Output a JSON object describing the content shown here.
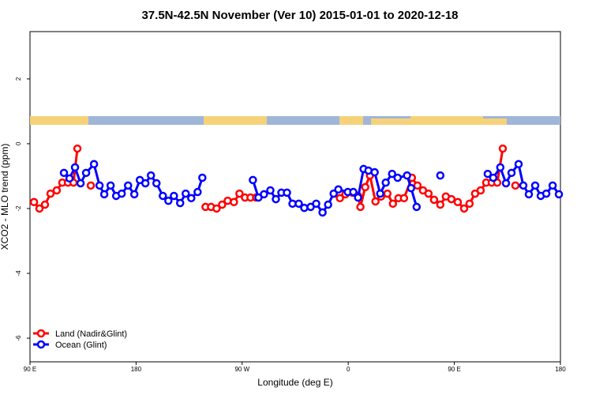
{
  "chart_data": {
    "type": "line",
    "title": "37.5N-42.5N November (Ver 10)   2015-01-01 to 2020-12-18",
    "x_label": "Longitude (deg E)",
    "y_label": "XCO2 - MLO trend (ppm)",
    "xlim": [
      90,
      540
    ],
    "xticks": [
      {
        "value": 90,
        "label": "90 E"
      },
      180,
      {
        "value": 270,
        "label": "90 W"
      },
      {
        "value": 360,
        "label": "0"
      },
      {
        "value": 450,
        "label": "90 E"
      },
      {
        "value": 540,
        "label": "180"
      }
    ],
    "ylim": [
      -6.73,
      3.46
    ],
    "yticks": [
      -6,
      -4,
      -2,
      0,
      2
    ],
    "legend": "bottom-left",
    "series": [
      {
        "name": "Land (Nadir&Glint)",
        "color": "#ff0000",
        "x": [
          93.4,
          98.0,
          102.7,
          107.4,
          112.7,
          117.4,
          122.2,
          126.9,
          130.2,
          null,
          141.6,
          null,
          238.9,
          243.6,
          248.3,
          253.0,
          257.7,
          263.0,
          267.7,
          272.4,
          277.1,
          281.8,
          null,
          352.9,
          357.6,
          363.6,
          368.3,
          370.3,
          374.4,
          378.4,
          383.1,
          387.8,
          393.2,
          397.9,
          402.6,
          407.3,
          414.0,
          418.7,
          423.4,
          428.1,
          432.8,
          438.1,
          442.8,
          447.5,
          452.9,
          458.3,
          462.9,
          467.6,
          472.3,
          477.0,
          481.7,
          486.4,
          491.1,
          null,
          501.8
        ],
        "values": [
          -1.8,
          -2.0,
          -1.88,
          -1.54,
          -1.44,
          -1.2,
          -1.2,
          -1.2,
          -0.15,
          null,
          -1.29,
          null,
          -1.95,
          -1.95,
          -2.0,
          -1.88,
          -1.76,
          -1.8,
          -1.54,
          -1.66,
          -1.66,
          -1.66,
          null,
          -1.68,
          -1.56,
          -1.51,
          -1.61,
          -1.95,
          -1.34,
          -0.98,
          -1.78,
          -1.63,
          -1.54,
          -1.85,
          -1.68,
          -1.68,
          -1.05,
          -1.29,
          -1.44,
          -1.54,
          -1.73,
          -1.88,
          -1.63,
          -1.71,
          -1.8,
          -2.0,
          -1.85,
          -1.54,
          -1.44,
          -1.2,
          -1.2,
          -1.2,
          -0.15,
          null,
          -1.29
        ]
      },
      {
        "name": "Ocean (Glint)",
        "color": "#0000ff",
        "x": [
          118.8,
          123.5,
          128.2,
          132.9,
          137.6,
          144.3,
          149.0,
          153.0,
          158.4,
          163.1,
          167.8,
          173.2,
          178.5,
          183.2,
          187.9,
          192.6,
          197.3,
          202.7,
          207.4,
          212.1,
          217.4,
          222.1,
          226.8,
          232.2,
          236.2,
          null,
          279.1,
          283.8,
          288.5,
          293.9,
          298.6,
          303.3,
          308.0,
          312.7,
          318.0,
          322.7,
          328.1,
          332.8,
          338.2,
          342.9,
          347.6,
          351.6,
          359.6,
          364.3,
          368.3,
          373.0,
          377.1,
          382.4,
          387.1,
          391.8,
          397.2,
          401.9,
          409.9,
          413.3,
          418.0,
          null,
          438.1,
          null,
          478.3,
          483.0,
          489.0,
          493.8,
          498.5,
          504.5,
          508.5,
          513.2,
          518.6,
          523.3,
          528.0,
          533.4,
          538.7
        ],
        "values": [
          -0.9,
          -1.07,
          -0.73,
          -1.22,
          -0.9,
          -0.63,
          -1.29,
          -1.56,
          -1.29,
          -1.61,
          -1.54,
          -1.29,
          -1.56,
          -1.12,
          -1.22,
          -0.98,
          -1.22,
          -1.61,
          -1.76,
          -1.61,
          -1.83,
          -1.54,
          -1.68,
          -1.49,
          -1.05,
          null,
          -1.12,
          -1.66,
          -1.56,
          -1.44,
          -1.71,
          -1.51,
          -1.51,
          -1.85,
          -1.85,
          -1.98,
          -1.95,
          -1.85,
          -2.12,
          -1.88,
          -1.54,
          -1.41,
          -1.49,
          -1.49,
          -1.66,
          -0.78,
          -0.83,
          -0.88,
          -1.54,
          -1.2,
          -0.93,
          -1.05,
          -0.98,
          -1.37,
          -1.95,
          null,
          -0.98,
          null,
          -0.93,
          -1.05,
          -0.73,
          -1.22,
          -0.9,
          -0.63,
          -1.29,
          -1.56,
          -1.29,
          -1.61,
          -1.54,
          -1.29,
          -1.56
        ]
      }
    ]
  }
}
